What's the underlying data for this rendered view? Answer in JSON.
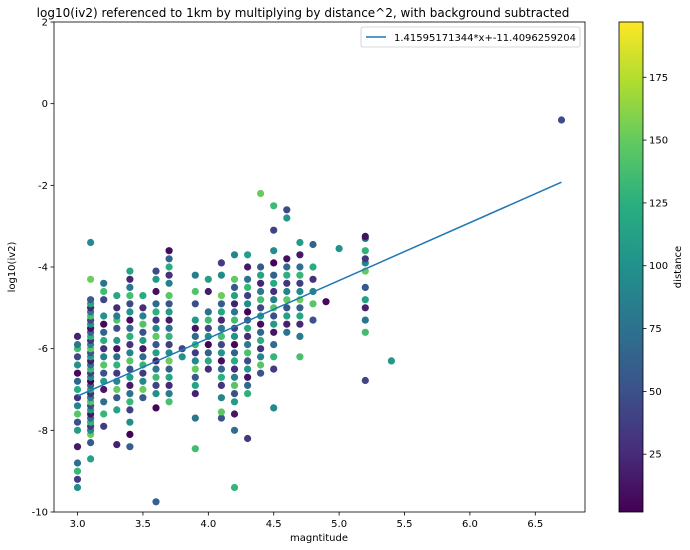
{
  "chart_data": {
    "type": "scatter",
    "title": "log10(iv2) referenced to 1km by multiplying by distance^2, with background subtracted",
    "xlabel": "magntitude",
    "ylabel": "log10(iv2)",
    "xlim": [
      2.82,
      6.88
    ],
    "ylim": [
      -10,
      2
    ],
    "xticks": [
      "3.0",
      "3.5",
      "4.0",
      "4.5",
      "5.0",
      "5.5",
      "6.0",
      "6.5"
    ],
    "xtick_values": [
      3.0,
      3.5,
      4.0,
      4.5,
      5.0,
      5.5,
      6.0,
      6.5
    ],
    "yticks": [
      "-10",
      "-8",
      "-6",
      "-4",
      "-2",
      "0",
      "2"
    ],
    "ytick_values": [
      -10,
      -8,
      -6,
      -4,
      -2,
      0,
      2
    ],
    "grid": false,
    "fit_line": {
      "label": "1.41595171344*x+-11.4096259204",
      "slope": 1.41595171344,
      "intercept": -11.4096259204,
      "x_range": [
        3.0,
        6.7
      ],
      "color": "#1f77b4"
    },
    "legend_position": "top-right",
    "colorbar": {
      "label": "distance",
      "colormap": "viridis",
      "range": [
        2,
        197
      ],
      "ticks": [
        "25",
        "50",
        "75",
        "100",
        "125",
        "150",
        "175"
      ],
      "tick_values": [
        25,
        50,
        75,
        100,
        125,
        150,
        175
      ]
    },
    "columns": [
      {
        "x": 3.0,
        "y": [
          -9.4,
          -9.2,
          -9.0,
          -8.8,
          -8.4,
          -8.0,
          -7.8,
          -7.6,
          -7.4,
          -7.2,
          -7.0,
          -6.8,
          -6.6,
          -6.4,
          -6.2,
          -6.0,
          -5.9,
          -5.7
        ]
      },
      {
        "x": 3.1,
        "y": [
          -8.7,
          -8.3,
          -8.1,
          -8.0,
          -7.9,
          -7.8,
          -7.7,
          -7.6,
          -7.5,
          -7.4,
          -7.3,
          -7.2,
          -7.1,
          -7.0,
          -6.9,
          -6.8,
          -6.7,
          -6.6,
          -6.5,
          -6.4,
          -6.3,
          -6.2,
          -6.1,
          -6.0,
          -5.9,
          -5.8,
          -5.7,
          -5.6,
          -5.5,
          -5.4,
          -5.3,
          -5.2,
          -5.1,
          -5.0,
          -4.9,
          -4.8,
          -4.3,
          -3.4
        ]
      },
      {
        "x": 3.2,
        "y": [
          -7.9,
          -7.6,
          -7.3,
          -7.0,
          -6.8,
          -6.6,
          -6.4,
          -6.2,
          -6.0,
          -5.8,
          -5.6,
          -5.4,
          -5.2,
          -4.8,
          -4.6,
          -4.4
        ]
      },
      {
        "x": 3.3,
        "y": [
          -8.35,
          -7.5,
          -7.2,
          -7.0,
          -6.8,
          -6.6,
          -6.4,
          -6.2,
          -6.0,
          -5.8,
          -5.5,
          -5.3,
          -5.2,
          -5.0,
          -4.7
        ]
      },
      {
        "x": 3.4,
        "y": [
          -8.4,
          -8.1,
          -7.8,
          -7.5,
          -7.3,
          -7.1,
          -6.9,
          -6.7,
          -6.5,
          -6.3,
          -6.1,
          -5.9,
          -5.7,
          -5.5,
          -5.3,
          -5.1,
          -4.9,
          -4.7,
          -4.5,
          -4.3,
          -4.1
        ]
      },
      {
        "x": 3.5,
        "y": [
          -7.2,
          -7.0,
          -6.8,
          -6.6,
          -6.4,
          -6.2,
          -6.0,
          -5.8,
          -5.6,
          -5.4,
          -5.2,
          -5.0,
          -4.7
        ]
      },
      {
        "x": 3.6,
        "y": [
          -9.75,
          -7.45,
          -7.1,
          -6.9,
          -6.7,
          -6.5,
          -6.3,
          -6.1,
          -5.9,
          -5.7,
          -5.5,
          -5.3,
          -5.1,
          -4.9,
          -4.6,
          -4.3,
          -4.1
        ]
      },
      {
        "x": 3.7,
        "y": [
          -7.3,
          -7.1,
          -6.9,
          -6.7,
          -6.5,
          -6.3,
          -6.1,
          -5.9,
          -5.7,
          -5.5,
          -5.3,
          -5.1,
          -4.9,
          -4.7,
          -4.4,
          -4.2,
          -4.0,
          -3.8,
          -3.6
        ]
      },
      {
        "x": 3.8,
        "y": [
          -6.2,
          -6.0
        ]
      },
      {
        "x": 3.9,
        "y": [
          -8.45,
          -7.7,
          -7.1,
          -6.9,
          -6.7,
          -6.5,
          -6.3,
          -6.1,
          -5.9,
          -5.7,
          -5.5,
          -5.3,
          -4.9,
          -4.6,
          -4.2
        ]
      },
      {
        "x": 4.0,
        "y": [
          -6.5,
          -6.3,
          -6.1,
          -5.9,
          -5.7,
          -5.5,
          -5.3,
          -5.1,
          -4.6,
          -4.3
        ]
      },
      {
        "x": 4.1,
        "y": [
          -7.7,
          -7.55,
          -7.2,
          -6.9,
          -6.7,
          -6.5,
          -6.3,
          -6.1,
          -5.9,
          -5.7,
          -5.5,
          -5.3,
          -5.1,
          -4.9,
          -4.7,
          -4.2,
          -3.9
        ]
      },
      {
        "x": 4.2,
        "y": [
          -9.4,
          -8.0,
          -7.6,
          -7.3,
          -7.1,
          -6.9,
          -6.7,
          -6.5,
          -6.3,
          -6.1,
          -5.9,
          -5.7,
          -5.5,
          -5.3,
          -5.1,
          -4.9,
          -4.7,
          -4.5,
          -4.3,
          -3.7
        ]
      },
      {
        "x": 4.3,
        "y": [
          -8.2,
          -7.1,
          -6.9,
          -6.7,
          -6.5,
          -6.3,
          -6.1,
          -5.9,
          -5.7,
          -5.5,
          -5.3,
          -5.1,
          -4.9,
          -4.7,
          -4.5,
          -4.3,
          -4.0,
          -3.7
        ]
      },
      {
        "x": 4.4,
        "y": [
          -6.6,
          -6.4,
          -6.2,
          -6.0,
          -5.8,
          -5.6,
          -5.4,
          -5.2,
          -5.0,
          -4.8,
          -4.6,
          -4.4,
          -4.2,
          -4.0,
          -2.2
        ]
      },
      {
        "x": 4.5,
        "y": [
          -7.45,
          -6.5,
          -6.2,
          -5.9,
          -5.6,
          -5.4,
          -5.2,
          -5.0,
          -4.8,
          -4.6,
          -4.4,
          -4.2,
          -3.9,
          -3.6,
          -3.1,
          -2.5
        ]
      },
      {
        "x": 4.6,
        "y": [
          -5.6,
          -5.4,
          -5.2,
          -5.0,
          -4.8,
          -4.6,
          -4.4,
          -4.2,
          -4.0,
          -3.8,
          -2.8,
          -2.6
        ]
      },
      {
        "x": 4.7,
        "y": [
          -6.2,
          -5.7,
          -5.4,
          -5.2,
          -5.0,
          -4.8,
          -4.6,
          -4.4,
          -4.2,
          -4.0,
          -3.7,
          -3.4
        ]
      },
      {
        "x": 4.8,
        "y": [
          -5.3,
          -4.9,
          -4.6,
          -4.3,
          -4.0,
          -3.45
        ]
      },
      {
        "x": 4.9,
        "y": [
          -4.85
        ]
      },
      {
        "x": 5.0,
        "y": [
          -3.55
        ]
      },
      {
        "x": 5.2,
        "y": [
          -6.78,
          -5.6,
          -5.3,
          -5.0,
          -4.8,
          -4.5,
          -4.1,
          -3.9,
          -3.8,
          -3.6,
          -3.3,
          -3.25
        ]
      },
      {
        "x": 5.4,
        "y": [
          -6.3
        ]
      },
      {
        "x": 6.7,
        "y": [
          -0.4
        ]
      }
    ]
  }
}
